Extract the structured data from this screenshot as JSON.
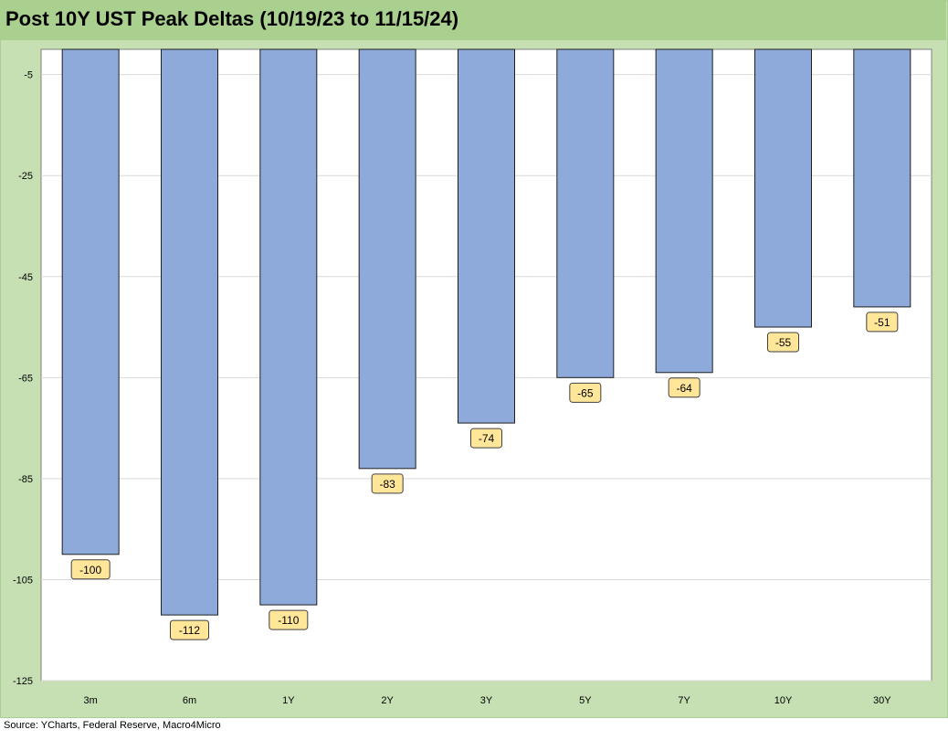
{
  "title": "Post 10Y UST Peak Deltas (10/19/23 to 11/15/24)",
  "source": "Source: YCharts, Federal Reserve, Macro4Micro",
  "colors": {
    "bar_fill": "#8eaadb",
    "bar_stroke": "#1f1f1f",
    "plot_bg": "#ffffff",
    "frame_bg": "#c6e0b4",
    "title_bg": "#a9d08e",
    "label_bg": "#ffe699",
    "grid": "#d9d9d9"
  },
  "chart_data": {
    "type": "bar",
    "title": "Post 10Y UST Peak Deltas (10/19/23 to 11/15/24)",
    "categories": [
      "3m",
      "6m",
      "1Y",
      "2Y",
      "3Y",
      "5Y",
      "7Y",
      "10Y",
      "30Y"
    ],
    "values": [
      -100,
      -112,
      -110,
      -83,
      -74,
      -65,
      -64,
      -55,
      -51
    ],
    "data_labels": [
      "-100",
      "-112",
      "-110",
      "-83",
      "-74",
      "-65",
      "-64",
      "-55",
      "-51"
    ],
    "ylim": [
      -125,
      0
    ],
    "yticks": [
      -5,
      -25,
      -45,
      -65,
      -85,
      -105,
      -125
    ],
    "ytick_labels": [
      "-5",
      "-25",
      "-45",
      "-65",
      "-85",
      "-105",
      "-125"
    ],
    "grid": true,
    "legend": "none",
    "xlabel": "",
    "ylabel": ""
  }
}
